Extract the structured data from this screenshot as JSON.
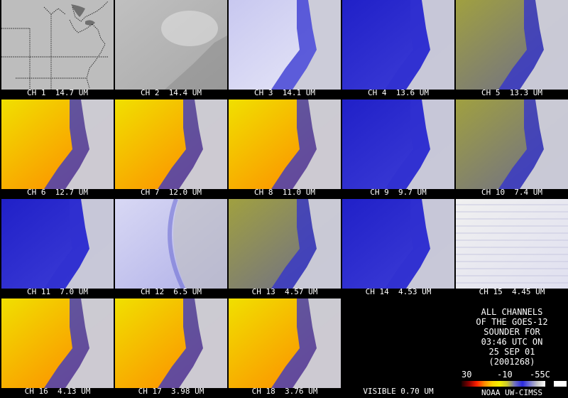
{
  "panels": [
    {
      "label": "CH 1  14.7 UM",
      "style": "map"
    },
    {
      "label": "CH 2  14.4 UM",
      "style": "gray"
    },
    {
      "label": "CH 3  14.1 UM",
      "style": "lightblue"
    },
    {
      "label": "CH 4  13.6 UM",
      "style": "blue"
    },
    {
      "label": "CH 5  13.3 UM",
      "style": "olive"
    },
    {
      "label": "CH 6  12.7 UM",
      "style": "yellow"
    },
    {
      "label": "CH 7  12.0 UM",
      "style": "yellow"
    },
    {
      "label": "CH 8  11.0 UM",
      "style": "yellow"
    },
    {
      "label": "CH 9  9.7 UM",
      "style": "blue"
    },
    {
      "label": "CH 10  7.4 UM",
      "style": "olive"
    },
    {
      "label": "CH 11  7.0 UM",
      "style": "blue"
    },
    {
      "label": "CH 12  6.5 UM",
      "style": "paleblue"
    },
    {
      "label": "CH 13  4.57 UM",
      "style": "olive"
    },
    {
      "label": "CH 14  4.53 UM",
      "style": "blue"
    },
    {
      "label": "CH 15  4.45 UM",
      "style": "white"
    },
    {
      "label": "CH 16  4.13 UM",
      "style": "yellow"
    },
    {
      "label": "CH 17  3.98 UM",
      "style": "yellow"
    },
    {
      "label": "CH 18  3.76 UM",
      "style": "yellow"
    },
    {
      "label": "VISIBLE 0.70 UM",
      "style": "black"
    }
  ],
  "info": {
    "lines": [
      "ALL CHANNELS",
      "OF THE GOES-12",
      "SOUNDER FOR",
      "03:46 UTC ON",
      "25 SEP 01",
      "(2001268)"
    ],
    "scale_left": "30",
    "scale_mid": "-10",
    "scale_right": "-55C",
    "credit": "NOAA UW-CIMSS"
  },
  "palette": {
    "gray": [
      "#c0c0c0",
      "#a8a8a8"
    ],
    "lightblue": [
      "#c8c8f0",
      "#e8e8f8"
    ],
    "blue": [
      "#2020c8",
      "#4040d8"
    ],
    "olive": [
      "#a0a040",
      "#6a6a90"
    ],
    "yellow": [
      "#f0e000",
      "#ff8000"
    ],
    "paleblue": [
      "#d8d8f4",
      "#b0b0e8"
    ],
    "white": [
      "#f0f0f0",
      "#e0e0f0"
    ],
    "land_cloud": "#d8d8d8",
    "cold_cloud": "#3030d0"
  }
}
